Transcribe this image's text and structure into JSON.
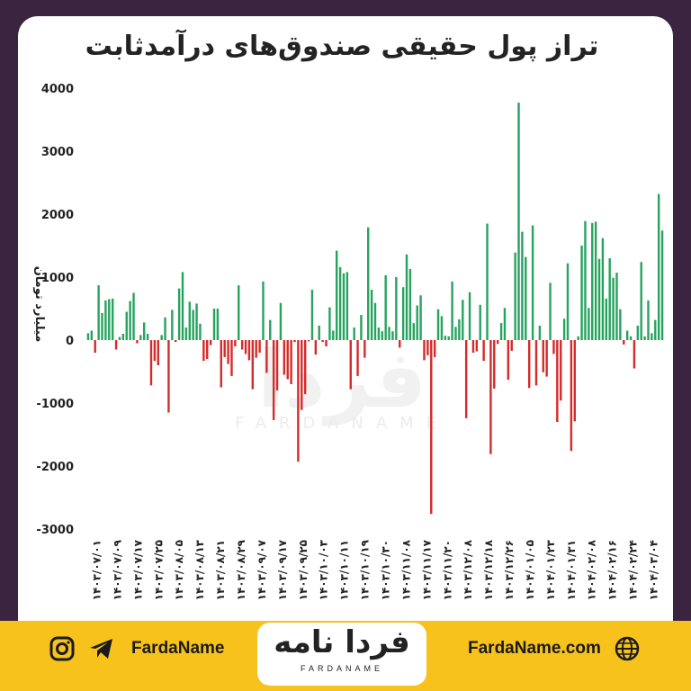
{
  "footer": {
    "handle": "FardaName",
    "website": "FardaName.com",
    "logo_text": "فردا نامه",
    "logo_subtext": "FARDANAME",
    "icons": [
      "instagram-icon",
      "telegram-icon",
      "globe-icon"
    ]
  },
  "watermark": {
    "text": "فردا",
    "subtext": "FARDANAME"
  },
  "colors": {
    "positive": "#27a35f",
    "negative": "#d42b2b",
    "accent": "#f7c21c",
    "frame": "#3a2440"
  },
  "chart_data": {
    "type": "bar",
    "title": "تراز پول حقیقی صندوق‌های درآمدثابت",
    "xlabel": "",
    "ylabel": "میلیارد تومان",
    "ylim": [
      -3000,
      4000
    ],
    "yticks": [
      "4000",
      "3000",
      "2000",
      "1000",
      "0",
      "-1000",
      "-2000",
      "-3000"
    ],
    "ytick_values": [
      4000,
      3000,
      2000,
      1000,
      0,
      -1000,
      -2000,
      -3000
    ],
    "grid": false,
    "legend": "none",
    "x_tick_labels": [
      "۱۴۰۳/۰۷/۰۱",
      "۱۴۰۳/۰۷/۰۹",
      "۱۴۰۳/۰۷/۱۷",
      "۱۴۰۳/۰۷/۲۵",
      "۱۴۰۳/۰۸/۰۵",
      "۱۴۰۳/۰۸/۱۳",
      "۱۴۰۳/۰۸/۲۱",
      "۱۴۰۳/۰۸/۲۹",
      "۱۴۰۳/۰۹/۰۷",
      "۱۴۰۳/۰۹/۱۷",
      "۱۴۰۳/۰۹/۲۵",
      "۱۴۰۳/۱۰/۰۳",
      "۱۴۰۳/۱۰/۱۱",
      "۱۴۰۳/۱۰/۱۹",
      "۱۴۰۳/۱۰/۳۰",
      "۱۴۰۳/۱۱/۰۸",
      "۱۴۰۳/۱۱/۱۷",
      "۱۴۰۳/۱۱/۲۰",
      "۱۴۰۳/۱۲/۰۸",
      "۱۴۰۳/۱۲/۱۸",
      "۱۴۰۳/۱۲/۲۶",
      "۱۴۰۴/۰۱/۰۵",
      "۱۴۰۴/۰۱/۲۳",
      "۱۴۰۴/۰۱/۳۱",
      "۱۴۰۴/۰۲/۰۸",
      "۱۴۰۴/۰۲/۱۶",
      "۱۴۰۴/۰۲/۲۴",
      "۱۴۰۴/۰۳/۰۴"
    ],
    "values": [
      110,
      150,
      -200,
      870,
      430,
      630,
      650,
      660,
      -150,
      50,
      100,
      450,
      620,
      750,
      -50,
      80,
      280,
      100,
      -720,
      -330,
      -400,
      80,
      360,
      -1150,
      480,
      -30,
      820,
      1080,
      200,
      610,
      480,
      580,
      260,
      -330,
      -300,
      -80,
      500,
      500,
      -750,
      -270,
      -380,
      -570,
      -100,
      870,
      -150,
      -220,
      -320,
      -780,
      -280,
      -200,
      930,
      -520,
      320,
      -1270,
      -800,
      590,
      -550,
      -620,
      -700,
      -30,
      -1930,
      -1110,
      -860,
      -20,
      800,
      -230,
      230,
      -30,
      -100,
      520,
      150,
      1420,
      1160,
      1060,
      1080,
      -780,
      200,
      -570,
      400,
      -280,
      1790,
      800,
      590,
      200,
      140,
      1030,
      210,
      140,
      1000,
      -120,
      840,
      1360,
      1130,
      270,
      550,
      710,
      -320,
      -240,
      -2760,
      -270,
      490,
      380,
      70,
      60,
      930,
      210,
      330,
      640,
      -1240,
      760,
      -200,
      -180,
      560,
      -330,
      1850,
      -1810,
      -770,
      -60,
      270,
      510,
      -630,
      -170,
      1390,
      3770,
      1720,
      1320,
      -760,
      1820,
      -720,
      230,
      -510,
      -580,
      910,
      -220,
      -1300,
      -960,
      340,
      1220,
      -1760,
      -1290,
      60,
      1500,
      1890,
      510,
      1860,
      1880,
      1290,
      1620,
      660,
      1300,
      990,
      1070,
      490,
      -70,
      150,
      60,
      -450,
      230,
      1240,
      60,
      630,
      110,
      320,
      2320,
      1740
    ]
  }
}
